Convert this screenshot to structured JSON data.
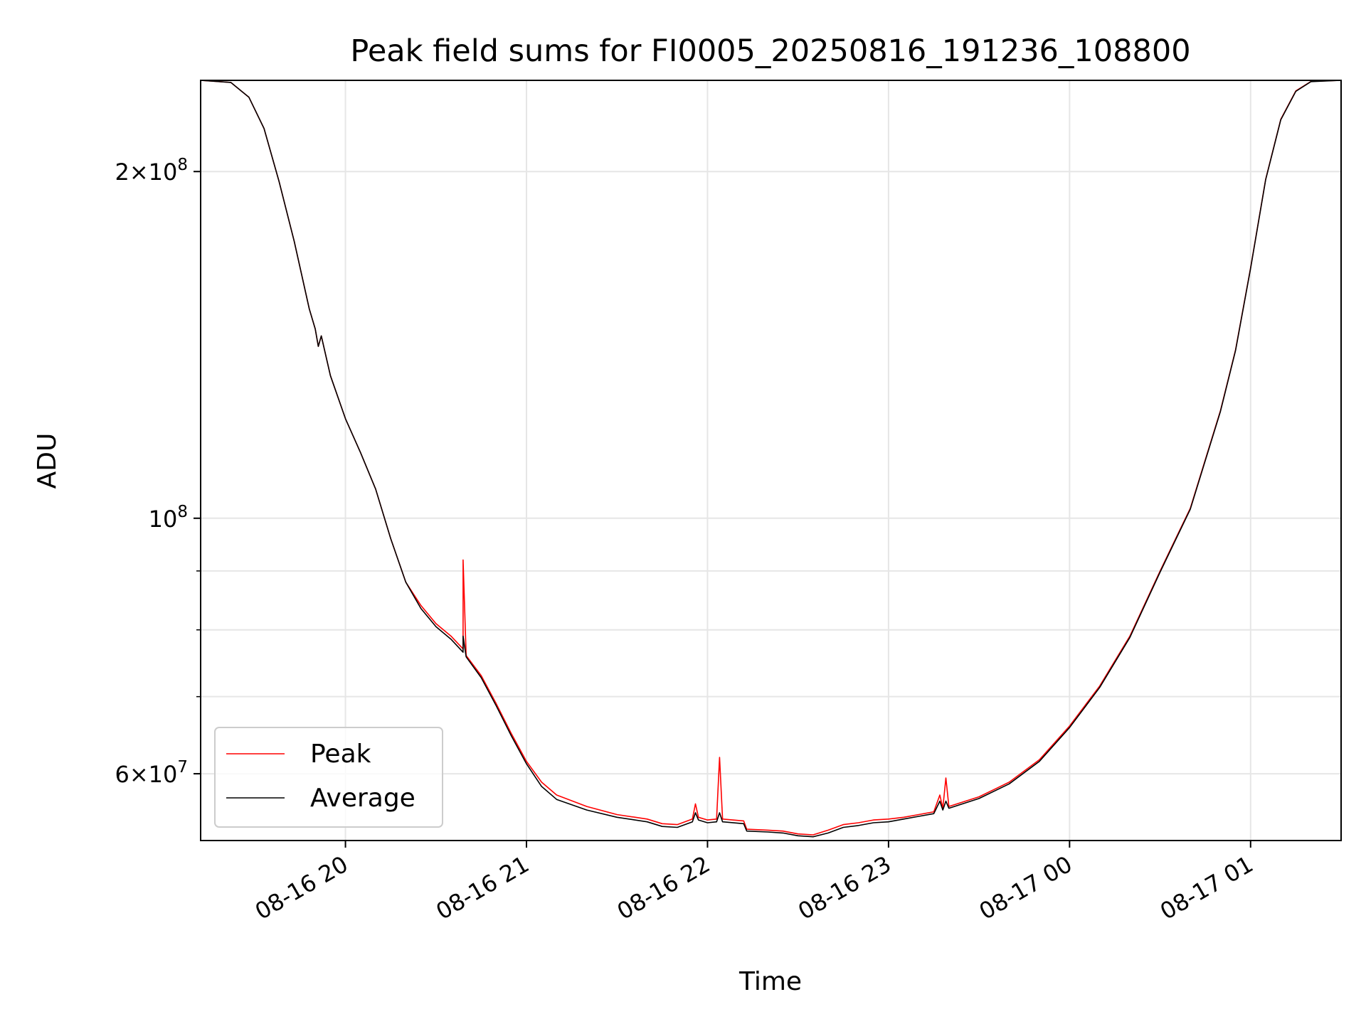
{
  "chart_data": {
    "type": "line",
    "title": "Peak field sums for FI0005_20250816_191236_108800",
    "xlabel": "Time",
    "ylabel": "ADU",
    "y_scale": "log",
    "xlim": [
      "2025-08-16 19:12",
      "2025-08-17 01:30"
    ],
    "ylim": [
      52500000,
      240000000
    ],
    "x_ticks": [
      {
        "t": "2025-08-16 20:00",
        "label": "08-16 20"
      },
      {
        "t": "2025-08-16 21:00",
        "label": "08-16 21"
      },
      {
        "t": "2025-08-16 22:00",
        "label": "08-16 22"
      },
      {
        "t": "2025-08-16 23:00",
        "label": "08-16 23"
      },
      {
        "t": "2025-08-17 00:00",
        "label": "08-17 00"
      },
      {
        "t": "2025-08-17 01:00",
        "label": "08-17 01"
      }
    ],
    "y_major_ticks": [
      {
        "value": 60000000,
        "base": "6×10",
        "exp": "7"
      },
      {
        "value": 100000000,
        "base": "10",
        "exp": "8"
      },
      {
        "value": 200000000,
        "base": "2×10",
        "exp": "8"
      }
    ],
    "y_minor_ticks": [
      70000000,
      80000000,
      90000000
    ],
    "grid": true,
    "legend_position": "lower-left",
    "series": [
      {
        "name": "Peak",
        "color": "#ff0000",
        "points": [
          [
            "2025-08-16 19:12",
            240000000
          ],
          [
            "2025-08-16 19:22",
            239000000
          ],
          [
            "2025-08-16 19:28",
            232000000
          ],
          [
            "2025-08-16 19:33",
            218000000
          ],
          [
            "2025-08-16 19:38",
            196000000
          ],
          [
            "2025-08-16 19:43",
            174000000
          ],
          [
            "2025-08-16 19:48",
            152000000
          ],
          [
            "2025-08-16 19:50",
            146000000
          ],
          [
            "2025-08-16 19:51",
            141000000
          ],
          [
            "2025-08-16 19:52",
            144000000
          ],
          [
            "2025-08-16 19:55",
            133000000
          ],
          [
            "2025-08-16 20:00",
            122000000
          ],
          [
            "2025-08-16 20:05",
            114000000
          ],
          [
            "2025-08-16 20:10",
            106000000
          ],
          [
            "2025-08-16 20:15",
            96000000
          ],
          [
            "2025-08-16 20:20",
            88000000
          ],
          [
            "2025-08-16 20:25",
            84000000
          ],
          [
            "2025-08-16 20:30",
            81000000
          ],
          [
            "2025-08-16 20:35",
            79000000
          ],
          [
            "2025-08-16 20:39",
            77000000
          ],
          [
            "2025-08-16 20:39",
            92000000
          ],
          [
            "2025-08-16 20:40",
            76000000
          ],
          [
            "2025-08-16 20:45",
            73000000
          ],
          [
            "2025-08-16 20:50",
            69000000
          ],
          [
            "2025-08-16 20:55",
            65000000
          ],
          [
            "2025-08-16 21:00",
            61500000
          ],
          [
            "2025-08-16 21:05",
            59000000
          ],
          [
            "2025-08-16 21:10",
            57500000
          ],
          [
            "2025-08-16 21:20",
            56200000
          ],
          [
            "2025-08-16 21:30",
            55300000
          ],
          [
            "2025-08-16 21:40",
            54800000
          ],
          [
            "2025-08-16 21:45",
            54300000
          ],
          [
            "2025-08-16 21:50",
            54200000
          ],
          [
            "2025-08-16 21:55",
            54800000
          ],
          [
            "2025-08-16 21:56",
            56500000
          ],
          [
            "2025-08-16 21:57",
            55000000
          ],
          [
            "2025-08-16 22:00",
            54700000
          ],
          [
            "2025-08-16 22:03",
            54800000
          ],
          [
            "2025-08-16 22:04",
            62000000
          ],
          [
            "2025-08-16 22:05",
            54800000
          ],
          [
            "2025-08-16 22:12",
            54600000
          ],
          [
            "2025-08-16 22:13",
            53700000
          ],
          [
            "2025-08-16 22:20",
            53600000
          ],
          [
            "2025-08-16 22:25",
            53500000
          ],
          [
            "2025-08-16 22:30",
            53200000
          ],
          [
            "2025-08-16 22:35",
            53100000
          ],
          [
            "2025-08-16 22:40",
            53600000
          ],
          [
            "2025-08-16 22:45",
            54200000
          ],
          [
            "2025-08-16 22:50",
            54400000
          ],
          [
            "2025-08-16 22:55",
            54700000
          ],
          [
            "2025-08-16 23:00",
            54800000
          ],
          [
            "2025-08-16 23:05",
            55000000
          ],
          [
            "2025-08-16 23:10",
            55300000
          ],
          [
            "2025-08-16 23:15",
            55600000
          ],
          [
            "2025-08-16 23:17",
            57500000
          ],
          [
            "2025-08-16 23:18",
            56000000
          ],
          [
            "2025-08-16 23:19",
            59500000
          ],
          [
            "2025-08-16 23:20",
            56200000
          ],
          [
            "2025-08-16 23:30",
            57300000
          ],
          [
            "2025-08-16 23:40",
            59000000
          ],
          [
            "2025-08-16 23:50",
            61700000
          ],
          [
            "2025-08-17 00:00",
            66000000
          ],
          [
            "2025-08-17 00:10",
            71500000
          ],
          [
            "2025-08-17 00:20",
            79000000
          ],
          [
            "2025-08-17 00:30",
            90000000
          ],
          [
            "2025-08-17 00:40",
            102000000
          ],
          [
            "2025-08-17 00:50",
            124000000
          ],
          [
            "2025-08-17 00:55",
            140000000
          ],
          [
            "2025-08-17 01:00",
            165000000
          ],
          [
            "2025-08-17 01:05",
            197000000
          ],
          [
            "2025-08-17 01:10",
            222000000
          ],
          [
            "2025-08-17 01:15",
            235000000
          ],
          [
            "2025-08-17 01:20",
            239500000
          ],
          [
            "2025-08-17 01:30",
            240000000
          ]
        ]
      },
      {
        "name": "Average",
        "color": "#000000",
        "points": [
          [
            "2025-08-16 19:12",
            240000000
          ],
          [
            "2025-08-16 19:22",
            239000000
          ],
          [
            "2025-08-16 19:28",
            232000000
          ],
          [
            "2025-08-16 19:33",
            218000000
          ],
          [
            "2025-08-16 19:38",
            196000000
          ],
          [
            "2025-08-16 19:43",
            174000000
          ],
          [
            "2025-08-16 19:48",
            152000000
          ],
          [
            "2025-08-16 19:50",
            146000000
          ],
          [
            "2025-08-16 19:51",
            141000000
          ],
          [
            "2025-08-16 19:52",
            144000000
          ],
          [
            "2025-08-16 19:55",
            133000000
          ],
          [
            "2025-08-16 20:00",
            122000000
          ],
          [
            "2025-08-16 20:05",
            114000000
          ],
          [
            "2025-08-16 20:10",
            106000000
          ],
          [
            "2025-08-16 20:15",
            96000000
          ],
          [
            "2025-08-16 20:20",
            88000000
          ],
          [
            "2025-08-16 20:25",
            83500000
          ],
          [
            "2025-08-16 20:30",
            80500000
          ],
          [
            "2025-08-16 20:35",
            78500000
          ],
          [
            "2025-08-16 20:39",
            76500000
          ],
          [
            "2025-08-16 20:39",
            79000000
          ],
          [
            "2025-08-16 20:40",
            75800000
          ],
          [
            "2025-08-16 20:45",
            72700000
          ],
          [
            "2025-08-16 20:50",
            68700000
          ],
          [
            "2025-08-16 20:55",
            64700000
          ],
          [
            "2025-08-16 21:00",
            61200000
          ],
          [
            "2025-08-16 21:05",
            58500000
          ],
          [
            "2025-08-16 21:10",
            57000000
          ],
          [
            "2025-08-16 21:20",
            55800000
          ],
          [
            "2025-08-16 21:30",
            55000000
          ],
          [
            "2025-08-16 21:40",
            54500000
          ],
          [
            "2025-08-16 21:45",
            54000000
          ],
          [
            "2025-08-16 21:50",
            53900000
          ],
          [
            "2025-08-16 21:55",
            54500000
          ],
          [
            "2025-08-16 21:56",
            55500000
          ],
          [
            "2025-08-16 21:57",
            54700000
          ],
          [
            "2025-08-16 22:00",
            54400000
          ],
          [
            "2025-08-16 22:03",
            54500000
          ],
          [
            "2025-08-16 22:04",
            55500000
          ],
          [
            "2025-08-16 22:05",
            54500000
          ],
          [
            "2025-08-16 22:12",
            54300000
          ],
          [
            "2025-08-16 22:13",
            53500000
          ],
          [
            "2025-08-16 22:20",
            53400000
          ],
          [
            "2025-08-16 22:25",
            53300000
          ],
          [
            "2025-08-16 22:30",
            53000000
          ],
          [
            "2025-08-16 22:35",
            52900000
          ],
          [
            "2025-08-16 22:40",
            53300000
          ],
          [
            "2025-08-16 22:45",
            53900000
          ],
          [
            "2025-08-16 22:50",
            54100000
          ],
          [
            "2025-08-16 22:55",
            54400000
          ],
          [
            "2025-08-16 23:00",
            54500000
          ],
          [
            "2025-08-16 23:05",
            54800000
          ],
          [
            "2025-08-16 23:10",
            55100000
          ],
          [
            "2025-08-16 23:15",
            55400000
          ],
          [
            "2025-08-16 23:17",
            56800000
          ],
          [
            "2025-08-16 23:18",
            55800000
          ],
          [
            "2025-08-16 23:19",
            56800000
          ],
          [
            "2025-08-16 23:20",
            56000000
          ],
          [
            "2025-08-16 23:30",
            57100000
          ],
          [
            "2025-08-16 23:40",
            58800000
          ],
          [
            "2025-08-16 23:50",
            61500000
          ],
          [
            "2025-08-17 00:00",
            65800000
          ],
          [
            "2025-08-17 00:10",
            71300000
          ],
          [
            "2025-08-17 00:20",
            78800000
          ],
          [
            "2025-08-17 00:30",
            89800000
          ],
          [
            "2025-08-17 00:40",
            101800000
          ],
          [
            "2025-08-17 00:50",
            123800000
          ],
          [
            "2025-08-17 00:55",
            139800000
          ],
          [
            "2025-08-17 01:00",
            164800000
          ],
          [
            "2025-08-17 01:05",
            196800000
          ],
          [
            "2025-08-17 01:10",
            221800000
          ],
          [
            "2025-08-17 01:15",
            234800000
          ],
          [
            "2025-08-17 01:20",
            239400000
          ],
          [
            "2025-08-17 01:30",
            240000000
          ]
        ]
      }
    ]
  }
}
